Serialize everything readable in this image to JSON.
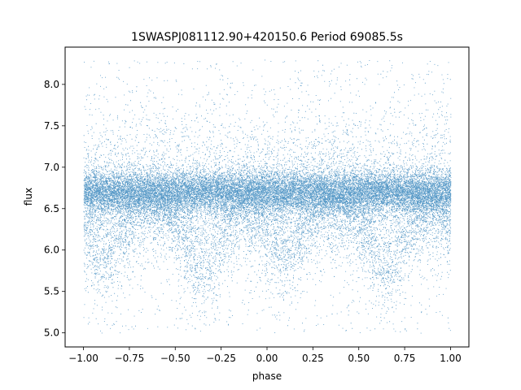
{
  "chart_data": {
    "type": "scatter",
    "title": "1SWASPJ081112.90+420150.6 Period 69085.5s",
    "xlabel": "phase",
    "ylabel": "flux",
    "xlim": [
      -1.1,
      1.1
    ],
    "ylim": [
      4.83,
      8.45
    ],
    "xticks": [
      -1.0,
      -0.75,
      -0.5,
      -0.25,
      0.0,
      0.25,
      0.5,
      0.75,
      1.0
    ],
    "xtick_labels": [
      "−1.00",
      "−0.75",
      "−0.50",
      "−0.25",
      "0.00",
      "0.25",
      "0.50",
      "0.75",
      "1.00"
    ],
    "yticks": [
      5.0,
      5.5,
      6.0,
      6.5,
      7.0,
      7.5,
      8.0
    ],
    "ytick_labels": [
      "5.0",
      "5.5",
      "6.0",
      "6.5",
      "7.0",
      "7.5",
      "8.0"
    ],
    "grid": false,
    "marker_color": "#1f77b4",
    "series": [
      {
        "x_range": [
          -1.0,
          1.0
        ],
        "baseline_flux": 6.7,
        "core_band": [
          6.3,
          7.0
        ],
        "dips": [
          {
            "phase": -0.35,
            "flux_min": 5.65
          },
          {
            "phase": 0.65,
            "flux_min": 5.65
          },
          {
            "phase": -0.9,
            "flux_min": 5.9
          },
          {
            "phase": 0.1,
            "flux_min": 5.9
          }
        ],
        "flux_range": [
          5.0,
          8.3
        ],
        "approx_points": 30000
      }
    ]
  }
}
